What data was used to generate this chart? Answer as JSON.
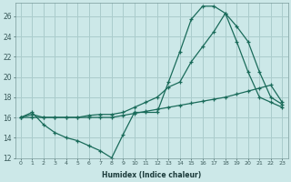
{
  "xlabel": "Humidex (Indice chaleur)",
  "bg_color": "#cce8e8",
  "grid_color": "#aacccc",
  "line_color": "#1a6b5a",
  "line1_y": [
    16.0,
    16.5,
    15.3,
    14.5,
    14.0,
    13.7,
    13.2,
    12.7,
    12.0,
    14.3,
    16.5,
    16.5,
    16.5,
    19.5,
    22.5,
    25.7,
    27.0,
    27.0,
    26.3,
    25.0,
    23.5,
    20.5,
    18.0,
    17.3
  ],
  "line2_y": [
    16.0,
    16.3,
    16.0,
    16.0,
    16.0,
    16.0,
    16.2,
    16.3,
    16.3,
    16.5,
    17.0,
    17.5,
    18.0,
    19.0,
    19.5,
    21.5,
    23.0,
    24.5,
    26.3,
    23.5,
    20.5,
    18.0,
    17.5,
    17.0
  ],
  "line3_y": [
    16.0,
    16.0,
    16.0,
    16.0,
    16.0,
    16.0,
    16.0,
    16.0,
    16.0,
    16.2,
    16.4,
    16.6,
    16.8,
    17.0,
    17.2,
    17.4,
    17.6,
    17.8,
    18.0,
    18.3,
    18.6,
    18.9,
    19.2,
    17.5
  ],
  "xlim_min": -0.5,
  "xlim_max": 23.5,
  "ylim_min": 12,
  "ylim_max": 27,
  "yticks": [
    12,
    14,
    16,
    18,
    20,
    22,
    24,
    26
  ],
  "xtick_labels": [
    "0",
    "1",
    "2",
    "3",
    "4",
    "5",
    "6",
    "7",
    "8",
    "9",
    "10",
    "11",
    "12",
    "13",
    "14",
    "15",
    "16",
    "17",
    "18",
    "19",
    "20",
    "21",
    "22",
    "23"
  ]
}
